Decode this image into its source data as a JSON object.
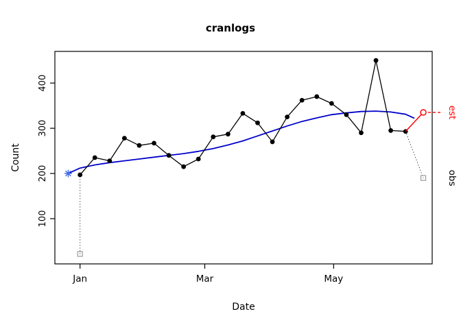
{
  "chart_data": {
    "type": "line",
    "title": "cranlogs",
    "xlabel": "Date",
    "ylabel": "Count",
    "x_unit": "week_index_from_jan",
    "xlim": [
      -1.7,
      23.8
    ],
    "ylim": [
      0,
      470
    ],
    "grid": false,
    "y_ticks": [
      100,
      200,
      300,
      400
    ],
    "x_ticks": [
      {
        "label": "Jan",
        "x": 0
      },
      {
        "label": "Mar",
        "x": 8.43
      },
      {
        "label": "May",
        "x": 17.14
      }
    ],
    "series": [
      {
        "name": "observed-counts",
        "color": "#000000",
        "marker": "filled-circle",
        "line_style": "solid",
        "x": [
          0,
          1,
          2,
          3,
          4,
          5,
          6,
          7,
          8,
          9,
          10,
          11,
          12,
          13,
          14,
          15,
          16,
          17,
          18,
          19,
          20,
          21,
          22
        ],
        "values": [
          197,
          235,
          228,
          278,
          262,
          267,
          240,
          215,
          232,
          281,
          287,
          333,
          312,
          270,
          325,
          362,
          370,
          355,
          330,
          290,
          450,
          295,
          293
        ]
      },
      {
        "name": "smooth-trend",
        "color": "#0000cc",
        "marker": null,
        "line_style": "solid",
        "x": [
          -0.8,
          0,
          1,
          2,
          3,
          4,
          5,
          6,
          7,
          8,
          9,
          10,
          11,
          12,
          13,
          14,
          15,
          16,
          17,
          18,
          19,
          20,
          21,
          22,
          22.6
        ],
        "values": [
          200,
          212,
          219,
          224,
          228,
          232,
          236,
          240,
          244,
          249,
          255,
          263,
          272,
          283,
          294,
          305,
          315,
          323,
          330,
          334,
          337,
          338,
          336,
          331,
          322
        ]
      },
      {
        "name": "estimate-segment",
        "color": "#ff0000",
        "marker": null,
        "line_style": "solid",
        "x": [
          22,
          23.2
        ],
        "values": [
          293,
          335
        ]
      }
    ],
    "annotations": {
      "start_star": {
        "x": -0.8,
        "y": 200,
        "color": "#4169e1"
      },
      "left_square": {
        "x": 0,
        "y": 22,
        "color": "#9a9a9a"
      },
      "right_square": {
        "x": 23.2,
        "y": 190,
        "color": "#9a9a9a"
      },
      "dotted_left": {
        "from": [
          0,
          22
        ],
        "to": [
          0,
          197
        ],
        "color": "#000000"
      },
      "dotted_right": {
        "from": [
          22,
          293
        ],
        "to": [
          23.2,
          190
        ],
        "color": "#000000"
      },
      "est_point": {
        "x": 23.2,
        "y": 335,
        "color": "#ff0000"
      },
      "est_dash_level": {
        "y": 335,
        "color": "#ff0000"
      }
    },
    "right_margin_labels": [
      {
        "text": "est",
        "color": "#ff0000",
        "y": 335
      },
      {
        "text": "obs",
        "color": "#000000",
        "y": 190
      }
    ]
  }
}
